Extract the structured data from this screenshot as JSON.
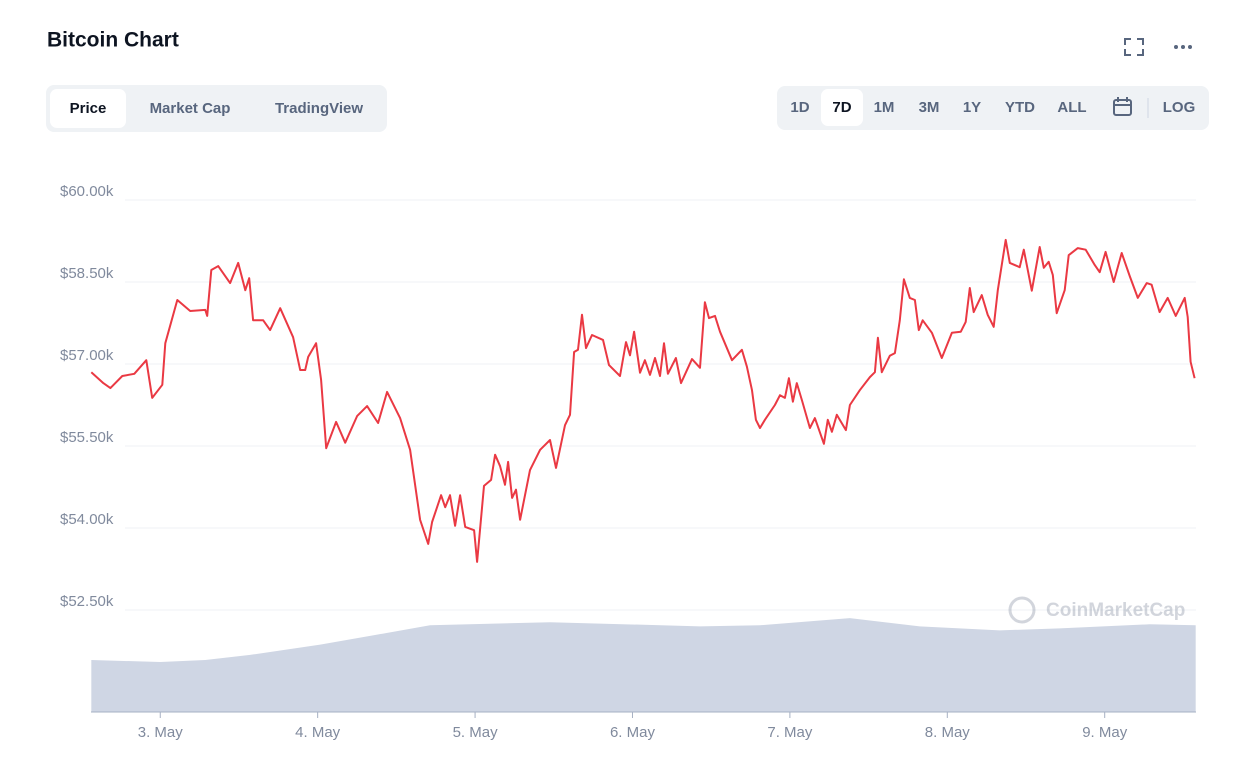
{
  "tabs": [
    "Price",
    "Market Cap",
    "TradingView"
  ],
  "ranges": [
    "1D",
    "7D",
    "1M",
    "3M",
    "1Y",
    "YTD",
    "ALL"
  ],
  "scale_toggle": "LOG",
  "chart_data": {
    "type": "line",
    "title": "Bitcoin Chart",
    "watermark": "CoinMarketCap",
    "xlim": [
      2.56,
      9.58
    ],
    "xticks": [
      {
        "value": 3,
        "label": "3. May"
      },
      {
        "value": 4,
        "label": "4. May"
      },
      {
        "value": 5,
        "label": "5. May"
      },
      {
        "value": 6,
        "label": "6. May"
      },
      {
        "value": 7,
        "label": "7. May"
      },
      {
        "value": 8,
        "label": "8. May"
      },
      {
        "value": 9,
        "label": "9. May"
      }
    ],
    "ylim": [
      52500,
      60000
    ],
    "yticks": [
      {
        "value": 52500,
        "label": "$52.50k"
      },
      {
        "value": 54000,
        "label": "$54.00k"
      },
      {
        "value": 55500,
        "label": "$55.50k"
      },
      {
        "value": 57000,
        "label": "$57.00k"
      },
      {
        "value": 58500,
        "label": "$58.50k"
      },
      {
        "value": 60000,
        "label": "$60.00k"
      }
    ],
    "y2lim": [
      0,
      100
    ],
    "grid": true,
    "series": [
      {
        "color": "#ea3943",
        "x": [
          2.562,
          2.638,
          2.683,
          2.759,
          2.835,
          2.911,
          2.949,
          3.013,
          3.032,
          3.108,
          3.19,
          3.286,
          3.298,
          3.324,
          3.368,
          3.444,
          3.495,
          3.54,
          3.565,
          3.59,
          3.654,
          3.698,
          3.762,
          3.844,
          3.889,
          3.921,
          3.94,
          3.99,
          4.022,
          4.054,
          4.117,
          4.175,
          4.251,
          4.314,
          4.384,
          4.441,
          4.524,
          4.587,
          4.651,
          4.702,
          4.727,
          4.784,
          4.81,
          4.841,
          4.873,
          4.905,
          4.937,
          4.994,
          5.013,
          5.057,
          5.102,
          5.127,
          5.159,
          5.19,
          5.21,
          5.235,
          5.26,
          5.286,
          5.349,
          5.413,
          5.476,
          5.514,
          5.571,
          5.603,
          5.629,
          5.654,
          5.679,
          5.705,
          5.743,
          5.813,
          5.851,
          5.921,
          5.959,
          5.984,
          6.01,
          6.048,
          6.079,
          6.111,
          6.143,
          6.175,
          6.2,
          6.225,
          6.276,
          6.308,
          6.378,
          6.429,
          6.46,
          6.486,
          6.524,
          6.556,
          6.632,
          6.695,
          6.727,
          6.759,
          6.784,
          6.81,
          6.841,
          6.905,
          6.937,
          6.968,
          6.994,
          7.019,
          7.044,
          7.076,
          7.127,
          7.159,
          7.216,
          7.241,
          7.267,
          7.298,
          7.356,
          7.381,
          7.444,
          7.508,
          7.54,
          7.559,
          7.584,
          7.635,
          7.667,
          7.698,
          7.724,
          7.762,
          7.794,
          7.819,
          7.844,
          7.902,
          7.965,
          8.029,
          8.086,
          8.117,
          8.143,
          8.168,
          8.219,
          8.257,
          8.295,
          8.321,
          8.371,
          8.397,
          8.46,
          8.486,
          8.537,
          8.587,
          8.613,
          8.644,
          8.67,
          8.695,
          8.746,
          8.771,
          8.829,
          8.879,
          8.937,
          8.968,
          9.006,
          9.057,
          9.108,
          9.159,
          9.21,
          9.267,
          9.298,
          9.349,
          9.4,
          9.451,
          9.508,
          9.527,
          9.546,
          9.571
        ],
        "values": [
          56850,
          56650,
          56560,
          56780,
          56820,
          57070,
          56380,
          56620,
          57380,
          58170,
          57970,
          57990,
          57880,
          58720,
          58790,
          58480,
          58850,
          58350,
          58570,
          57800,
          57800,
          57620,
          58020,
          57490,
          56890,
          56890,
          57130,
          57380,
          56710,
          55460,
          55940,
          55560,
          56050,
          56230,
          55920,
          56490,
          56010,
          55430,
          54150,
          53710,
          54110,
          54600,
          54380,
          54600,
          54040,
          54600,
          54020,
          53960,
          53380,
          54770,
          54880,
          55340,
          55130,
          54790,
          55210,
          54550,
          54700,
          54150,
          55060,
          55430,
          55610,
          55100,
          55880,
          56070,
          57220,
          57260,
          57900,
          57290,
          57530,
          57440,
          56980,
          56780,
          57400,
          57160,
          57590,
          56840,
          57070,
          56800,
          57110,
          56780,
          57380,
          56820,
          57110,
          56650,
          57090,
          56930,
          58130,
          57840,
          57880,
          57590,
          57070,
          57260,
          56950,
          56520,
          55980,
          55830,
          55980,
          56250,
          56430,
          56380,
          56740,
          56310,
          56650,
          56340,
          55830,
          56010,
          55540,
          55980,
          55760,
          56070,
          55790,
          56250,
          56520,
          56760,
          56850,
          57480,
          56850,
          57150,
          57200,
          57800,
          58550,
          58210,
          58170,
          57620,
          57800,
          57570,
          57110,
          57570,
          57590,
          57770,
          58390,
          57950,
          58260,
          57900,
          57680,
          58350,
          59270,
          58850,
          58770,
          59090,
          58340,
          59140,
          58760,
          58870,
          58630,
          57930,
          58350,
          58990,
          59120,
          59090,
          58810,
          58680,
          59050,
          58500,
          59030,
          58610,
          58210,
          58480,
          58450,
          57950,
          58210,
          57880,
          58210,
          57860,
          57040,
          56740
        ]
      },
      {
        "color": "#cfd6e4",
        "axis": "y2",
        "x": [
          2.562,
          3,
          3.286,
          3.571,
          4.016,
          4.714,
          5.476,
          6.429,
          6.81,
          7.381,
          7.825,
          8.333,
          8.714,
          9.286,
          9.578
        ],
        "values": [
          51,
          49,
          51,
          56,
          66,
          85,
          88,
          84,
          85,
          92,
          84,
          80,
          82,
          86,
          85
        ]
      }
    ]
  }
}
